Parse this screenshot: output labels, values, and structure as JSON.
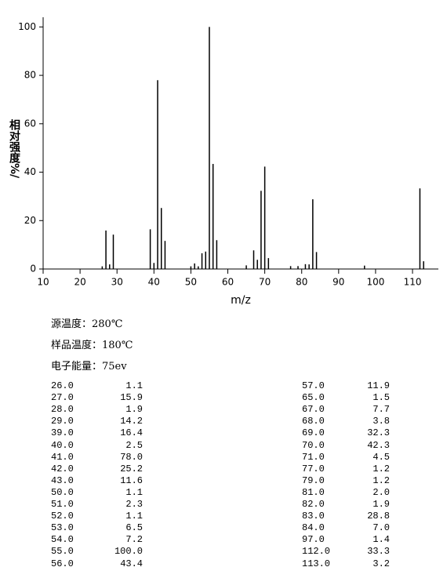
{
  "chart_data": {
    "type": "spectrum",
    "y_label": "相对强度%/",
    "x_label": "m/z",
    "x": [
      26,
      27,
      28,
      29,
      39,
      40,
      41,
      42,
      43,
      50,
      51,
      52,
      53,
      54,
      55,
      56,
      57,
      65,
      67,
      68,
      69,
      70,
      71,
      77,
      79,
      81,
      82,
      83,
      84,
      97,
      112,
      113
    ],
    "values": [
      1.1,
      15.9,
      1.9,
      14.2,
      16.4,
      2.5,
      78.0,
      25.2,
      11.6,
      1.1,
      2.3,
      1.1,
      6.5,
      7.2,
      100.0,
      43.4,
      11.9,
      1.5,
      7.7,
      3.8,
      32.3,
      42.3,
      4.5,
      1.2,
      1.2,
      2.0,
      1.9,
      28.8,
      7.0,
      1.4,
      33.3,
      3.2
    ],
    "color": "#000000",
    "xlim": [
      10,
      117
    ],
    "xticks": [
      10,
      20,
      30,
      40,
      50,
      60,
      70,
      80,
      90,
      100,
      110
    ],
    "ylim": [
      0,
      104
    ],
    "yticks": [
      0,
      20,
      40,
      60,
      80,
      100
    ]
  },
  "info": [
    "源温度：280℃",
    "样品温度：180℃",
    "电子能量：75ev"
  ],
  "table": {
    "left": [
      [
        "26.0",
        "1.1"
      ],
      [
        "27.0",
        "15.9"
      ],
      [
        "28.0",
        "1.9"
      ],
      [
        "29.0",
        "14.2"
      ],
      [
        "39.0",
        "16.4"
      ],
      [
        "40.0",
        "2.5"
      ],
      [
        "41.0",
        "78.0"
      ],
      [
        "42.0",
        "25.2"
      ],
      [
        "43.0",
        "11.6"
      ],
      [
        "50.0",
        "1.1"
      ],
      [
        "51.0",
        "2.3"
      ],
      [
        "52.0",
        "1.1"
      ],
      [
        "53.0",
        "6.5"
      ],
      [
        "54.0",
        "7.2"
      ],
      [
        "55.0",
        "100.0"
      ],
      [
        "56.0",
        "43.4"
      ]
    ],
    "right": [
      [
        "57.0",
        "11.9"
      ],
      [
        "65.0",
        "1.5"
      ],
      [
        "67.0",
        "7.7"
      ],
      [
        "68.0",
        "3.8"
      ],
      [
        "69.0",
        "32.3"
      ],
      [
        "70.0",
        "42.3"
      ],
      [
        "71.0",
        "4.5"
      ],
      [
        "77.0",
        "1.2"
      ],
      [
        "79.0",
        "1.2"
      ],
      [
        "81.0",
        "2.0"
      ],
      [
        "82.0",
        "1.9"
      ],
      [
        "83.0",
        "28.8"
      ],
      [
        "84.0",
        "7.0"
      ],
      [
        "97.0",
        "1.4"
      ],
      [
        "112.0",
        "33.3"
      ],
      [
        "113.0",
        "3.2"
      ]
    ]
  }
}
